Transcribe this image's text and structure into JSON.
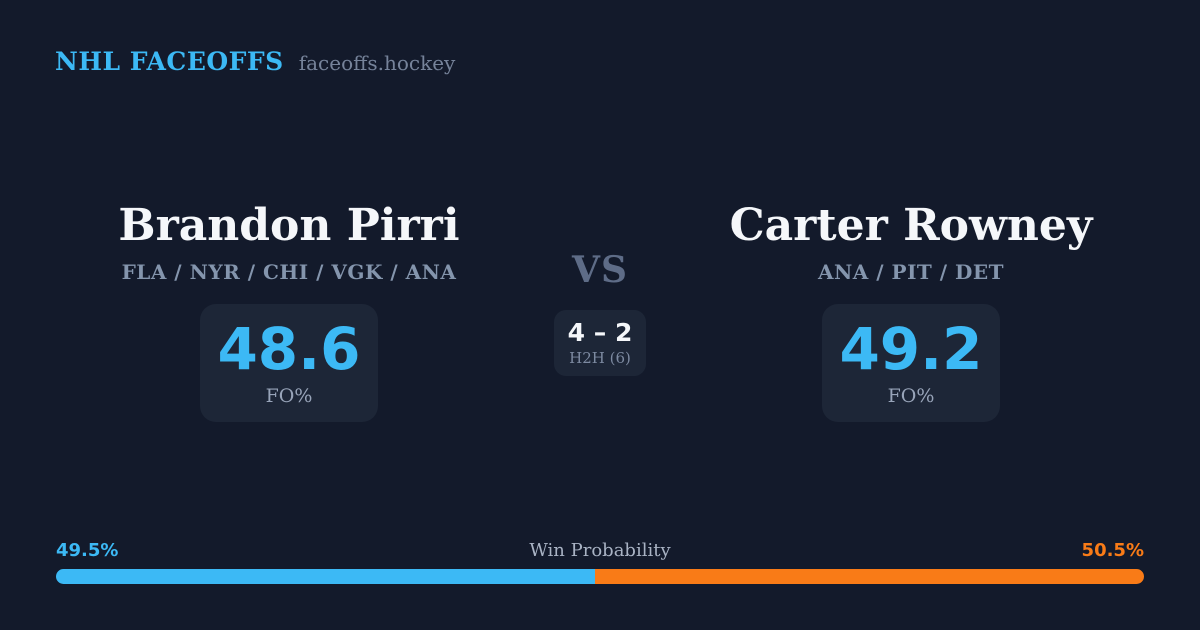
{
  "header": {
    "brand": "NHL FACEOFFS",
    "site": "faceoffs.hockey"
  },
  "players": [
    {
      "name": "Brandon Pirri",
      "teams": "FLA / NYR / CHI / VGK / ANA",
      "fo_pct": "48.6",
      "stat_label": "FO%"
    },
    {
      "name": "Carter Rowney",
      "teams": "ANA / PIT / DET",
      "fo_pct": "49.2",
      "stat_label": "FO%"
    }
  ],
  "matchup": {
    "vs": "VS",
    "h2h_score": "4 – 2",
    "h2h_label": "H2H (6)"
  },
  "win_probability": {
    "title": "Win Probability",
    "left_label": "49.5%",
    "right_label": "50.5%",
    "left_value": 49.5,
    "right_value": 50.5
  },
  "colors": {
    "background": "#131a2b",
    "card_background": "#1d2637",
    "accent_blue": "#3cb9f5",
    "accent_orange": "#f97b17"
  }
}
